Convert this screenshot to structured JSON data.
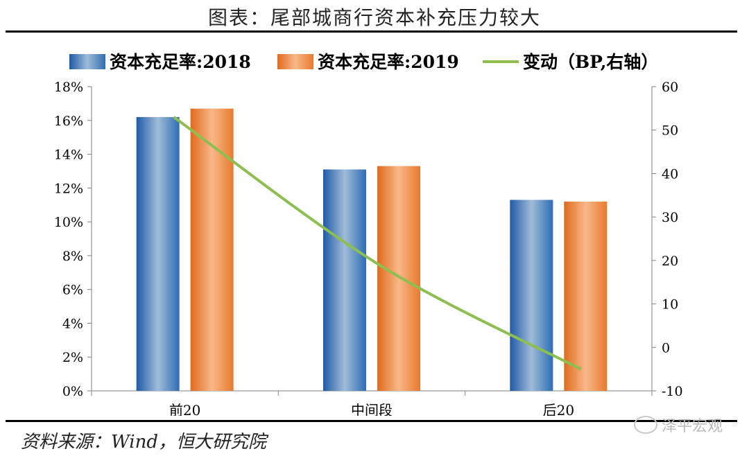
{
  "header": {
    "title": "图表：尾部城商行资本补充压力较大"
  },
  "footer": {
    "source": "资料来源：Wind，恒大研究院",
    "watermark": "泽平宏观"
  },
  "colors": {
    "bar2018": "#2e6db5",
    "bar2019": "#e87a2e",
    "line": "#8cbf4f"
  },
  "chart_data": {
    "type": "bar",
    "categories": [
      "前20",
      "中间段",
      "后20"
    ],
    "series": [
      {
        "name": "资本充足率:2018",
        "type": "bar",
        "axis": "left",
        "values": [
          16.2,
          13.1,
          11.3
        ]
      },
      {
        "name": "资本充足率:2019",
        "type": "bar",
        "axis": "left",
        "values": [
          16.7,
          13.3,
          11.2
        ]
      },
      {
        "name": "变动（BP,右轴）",
        "type": "line",
        "axis": "right",
        "values": [
          53,
          19,
          -5
        ]
      }
    ],
    "y_left": {
      "min": 0,
      "max": 18,
      "step": 2,
      "format": "percent",
      "ticks": [
        "0%",
        "2%",
        "4%",
        "6%",
        "8%",
        "10%",
        "12%",
        "14%",
        "16%",
        "18%"
      ]
    },
    "y_right": {
      "min": -10,
      "max": 60,
      "step": 10,
      "ticks": [
        "-10",
        "0",
        "10",
        "20",
        "30",
        "40",
        "50",
        "60"
      ]
    },
    "legend": "top",
    "grid": false
  }
}
